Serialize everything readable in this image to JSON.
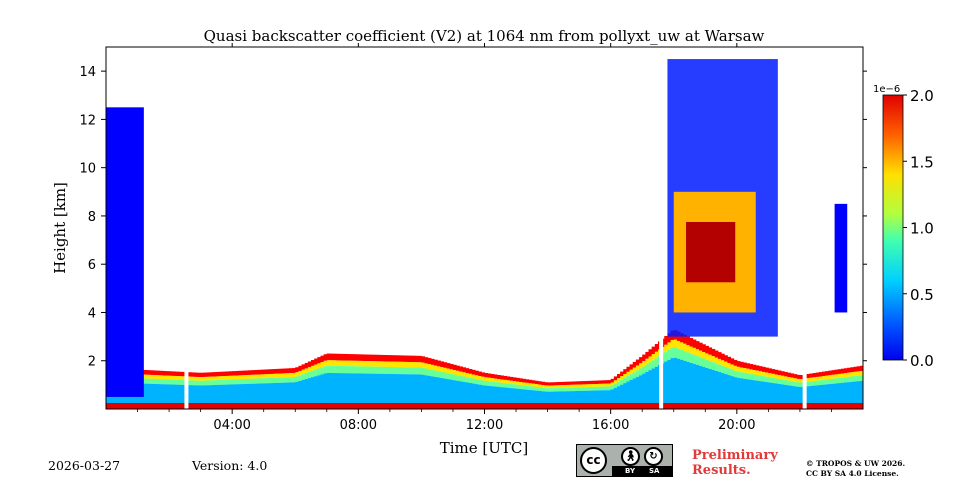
{
  "chart_data": {
    "type": "heatmap",
    "title": "Quasi backscatter coefficient (V2) at 1064 nm from pollyxt_uw at Warsaw",
    "xlabel": "Time [UTC]",
    "ylabel": "Height [km]",
    "xlim_hours": [
      0,
      24
    ],
    "ylim_km": [
      0,
      15
    ],
    "x_ticks": [
      {
        "hour": 4,
        "label": "04:00"
      },
      {
        "hour": 8,
        "label": "08:00"
      },
      {
        "hour": 12,
        "label": "12:00"
      },
      {
        "hour": 16,
        "label": "16:00"
      },
      {
        "hour": 20,
        "label": "20:00"
      }
    ],
    "y_ticks": [
      {
        "km": 2,
        "label": "2"
      },
      {
        "km": 4,
        "label": "4"
      },
      {
        "km": 6,
        "label": "6"
      },
      {
        "km": 8,
        "label": "8"
      },
      {
        "km": 10,
        "label": "10"
      },
      {
        "km": 12,
        "label": "12"
      },
      {
        "km": 14,
        "label": "14"
      }
    ],
    "colorbar": {
      "exponent_label": "1e−6",
      "range": [
        0.0,
        2.0
      ],
      "colormap": "jet",
      "ticks": [
        {
          "value": 0.0,
          "label": "0.0"
        },
        {
          "value": 0.5,
          "label": "0.5"
        },
        {
          "value": 1.0,
          "label": "1.0"
        },
        {
          "value": 1.5,
          "label": "1.5"
        },
        {
          "value": 2.0,
          "label": "2.0"
        }
      ]
    },
    "layers": [
      {
        "name": "boundary-layer",
        "t_start": 0.0,
        "t_end": 24.0,
        "top_km_by_hour": [
          [
            0,
            1.7
          ],
          [
            3,
            1.5
          ],
          [
            6,
            1.7
          ],
          [
            7,
            2.3
          ],
          [
            10,
            2.2
          ],
          [
            12,
            1.5
          ],
          [
            14,
            1.1
          ],
          [
            16,
            1.2
          ],
          [
            17,
            2.2
          ],
          [
            18,
            3.3
          ],
          [
            20,
            2.0
          ],
          [
            22,
            1.4
          ],
          [
            24,
            1.8
          ]
        ],
        "value": 0.6
      },
      {
        "name": "surface-strong-layer",
        "t_start": 0.0,
        "t_end": 24.0,
        "bottom_km": 0.0,
        "top_km": 0.25,
        "value": 1.8
      },
      {
        "name": "early-morning-aerosol",
        "t_start": 0.0,
        "t_end": 1.2,
        "bottom_km": 0.5,
        "top_km": 12.5,
        "value": 0.25
      },
      {
        "name": "upper-cirrus",
        "t_start": 17.8,
        "t_end": 21.3,
        "bottom_km": 3.0,
        "top_km": 14.5,
        "value": 0.3
      },
      {
        "name": "thick-cloud",
        "t_start": 18.0,
        "t_end": 20.6,
        "bottom_km": 4.0,
        "top_km": 9.0,
        "value": 1.4
      },
      {
        "name": "late-aerosol",
        "t_start": 23.1,
        "t_end": 23.5,
        "bottom_km": 4.0,
        "top_km": 8.5,
        "value": 0.25
      }
    ],
    "data_gaps_hours": [
      2.55,
      17.6,
      22.15
    ]
  },
  "footer": {
    "date": "2026-03-27",
    "version": "Version: 4.0",
    "license_cc": "cc",
    "license_by": "BY",
    "license_sa": "SA",
    "preliminary": "Preliminary\nResults.",
    "copyright": "© TROPOS & UW 2026.\nCC BY SA 4.0 License."
  },
  "colors": {
    "jet_low": "#00007f",
    "jet_mid": "#7fff7f",
    "jet_high": "#7f0000",
    "prelim_text": "#e03a3a"
  }
}
